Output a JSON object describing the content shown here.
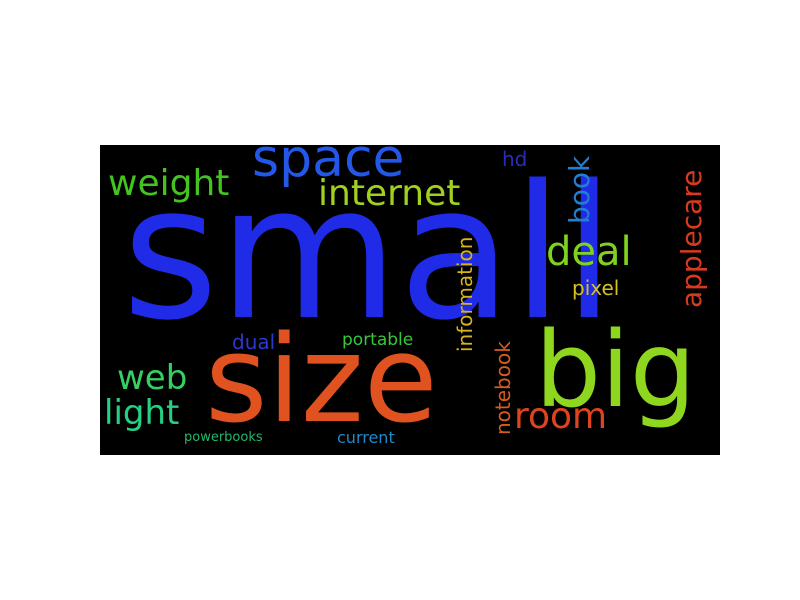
{
  "wordcloud": {
    "words": {
      "small": {
        "text": "small",
        "color": "#1f2be6"
      },
      "size": {
        "text": "size",
        "color": "#e0521f"
      },
      "big": {
        "text": "big",
        "color": "#8fd61f"
      },
      "space": {
        "text": "space",
        "color": "#2357e8"
      },
      "weight": {
        "text": "weight",
        "color": "#43c41f"
      },
      "internet": {
        "text": "internet",
        "color": "#a0d11f"
      },
      "deal": {
        "text": "deal",
        "color": "#7fd31f"
      },
      "web": {
        "text": "web",
        "color": "#34d162"
      },
      "light": {
        "text": "light",
        "color": "#25cf84"
      },
      "room": {
        "text": "room",
        "color": "#e0441f"
      },
      "book": {
        "text": "book",
        "color": "#1f7fd1"
      },
      "applecare": {
        "text": "applecare",
        "color": "#d93a1f"
      },
      "hd": {
        "text": "hd",
        "color": "#2b2bb8"
      },
      "pixel": {
        "text": "pixel",
        "color": "#d6c11f"
      },
      "information": {
        "text": "information",
        "color": "#d6b21f"
      },
      "notebook": {
        "text": "notebook",
        "color": "#d65b1f"
      },
      "dual": {
        "text": "dual",
        "color": "#2a3ad1"
      },
      "portable": {
        "text": "portable",
        "color": "#35c83b"
      },
      "powerbooks": {
        "text": "powerbooks",
        "color": "#1fb86a"
      },
      "current": {
        "text": "current",
        "color": "#1f88c8"
      }
    }
  }
}
